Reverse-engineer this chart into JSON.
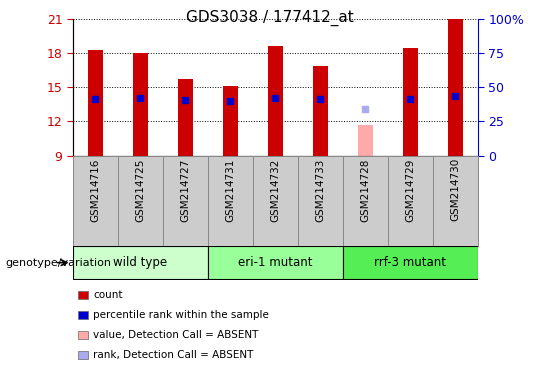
{
  "title": "GDS3038 / 177412_at",
  "samples": [
    "GSM214716",
    "GSM214725",
    "GSM214727",
    "GSM214731",
    "GSM214732",
    "GSM214733",
    "GSM214728",
    "GSM214729",
    "GSM214730"
  ],
  "bar_bottoms": [
    9,
    9,
    9,
    9,
    9,
    9,
    9,
    9,
    9
  ],
  "bar_tops": [
    18.3,
    18.0,
    15.7,
    15.1,
    18.6,
    16.9,
    11.7,
    18.5,
    21.0
  ],
  "bar_color_normal": "#cc0000",
  "bar_color_absent": "#ffaaaa",
  "absent_bar_indices": [
    6
  ],
  "blue_dot_values": [
    14.0,
    14.1,
    13.9,
    13.8,
    14.1,
    14.0,
    13.1,
    14.0,
    14.2
  ],
  "blue_dot_color": "#0000cc",
  "blue_dot_absent_color": "#aaaaee",
  "blue_dot_absent_indices": [
    6
  ],
  "ylim_left": [
    9,
    21
  ],
  "ylim_right": [
    0,
    100
  ],
  "yticks_left": [
    9,
    12,
    15,
    18,
    21
  ],
  "yticks_right": [
    0,
    25,
    50,
    75,
    100
  ],
  "yticklabels_right": [
    "0",
    "25",
    "50",
    "75",
    "100%"
  ],
  "left_tick_color": "#cc0000",
  "right_tick_color": "#0000cc",
  "genotype_groups": [
    {
      "label": "wild type",
      "start": 0,
      "end": 3,
      "color": "#ccffcc"
    },
    {
      "label": "eri-1 mutant",
      "start": 3,
      "end": 6,
      "color": "#99ff99"
    },
    {
      "label": "rrf-3 mutant",
      "start": 6,
      "end": 9,
      "color": "#55ee55"
    }
  ],
  "legend_items": [
    {
      "color": "#cc0000",
      "label": "count"
    },
    {
      "color": "#0000cc",
      "label": "percentile rank within the sample"
    },
    {
      "color": "#ffaaaa",
      "label": "value, Detection Call = ABSENT"
    },
    {
      "color": "#aaaaee",
      "label": "rank, Detection Call = ABSENT"
    }
  ],
  "genotype_label": "genotype/variation",
  "fig_bg": "#ffffff",
  "plot_bg": "#ffffff",
  "sample_box_color": "#cccccc",
  "bar_width": 0.35
}
